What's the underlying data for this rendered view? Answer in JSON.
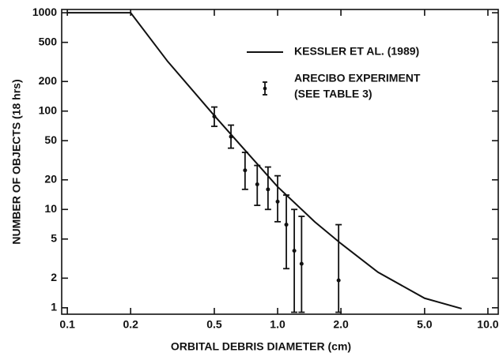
{
  "chart_data": {
    "type": "scatter",
    "xlabel": "ORBITAL DEBRIS DIAMETER (cm)",
    "ylabel": "NUMBER OF OBJECTS (18 hrs)",
    "xscale": "log",
    "yscale": "log",
    "xlim": [
      0.094,
      11.2
    ],
    "ylim": [
      0.86,
      1080
    ],
    "xticks": [
      0.1,
      0.2,
      0.5,
      {
        "value": 1,
        "label": "1.0"
      },
      {
        "value": 2,
        "label": "2.0"
      },
      {
        "value": 5,
        "label": "5.0"
      },
      {
        "value": 10,
        "label": "10.0"
      }
    ],
    "yticks": [
      1,
      2,
      5,
      10,
      20,
      50,
      100,
      200,
      500,
      1000
    ],
    "legend": "upper right",
    "series": [
      {
        "name": "KESSLER ET AL. (1989)",
        "kind": "line",
        "color": "#111111",
        "x": [
          0.1,
          0.2,
          0.3,
          0.5,
          0.7,
          1.0,
          1.5,
          2.0,
          3.0,
          5.0,
          7.5
        ],
        "values": [
          1000,
          1000,
          320,
          90,
          40,
          17,
          7.5,
          4.5,
          2.3,
          1.25,
          0.98
        ]
      },
      {
        "name": "ARECIBO EXPERIMENT",
        "legend_note": "(SEE TABLE 3)",
        "kind": "errorbar",
        "color": "#111111",
        "x": [
          0.5,
          0.6,
          0.7,
          0.8,
          0.9,
          1.0,
          1.1,
          1.2,
          1.3,
          1.95
        ],
        "values": [
          88,
          55,
          25,
          18,
          16,
          12,
          7,
          3.8,
          2.8,
          1.9
        ],
        "low": [
          70,
          42,
          16,
          11,
          10,
          7.5,
          2.5,
          0.9,
          0.9,
          0.9
        ],
        "high": [
          110,
          72,
          38,
          28,
          27,
          22,
          14,
          10,
          8.5,
          7
        ]
      }
    ]
  }
}
